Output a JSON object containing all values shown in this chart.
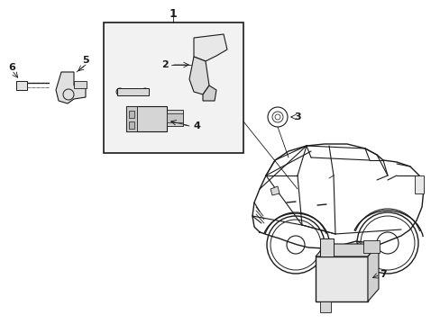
{
  "bg_color": "#ffffff",
  "line_color": "#1a1a1a",
  "box_fill": "#f0f0f0",
  "fig_width": 4.89,
  "fig_height": 3.6,
  "dpi": 100
}
